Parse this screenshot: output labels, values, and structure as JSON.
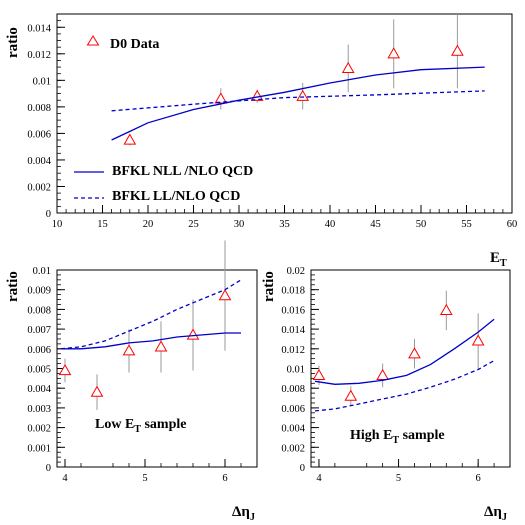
{
  "colors": {
    "nll": "#0000cc",
    "ll": "#0000cc",
    "data_marker": "#ff0000",
    "error_bar": "#999999",
    "axis": "#000000"
  },
  "chart_data": [
    {
      "type": "line",
      "ylabel": "ratio",
      "xlim": [
        10,
        60
      ],
      "ylim": [
        0,
        0.015
      ],
      "xticks": [
        "10",
        "15",
        "20",
        "25",
        "30",
        "35",
        "40",
        "45",
        "50",
        "55",
        "60"
      ],
      "yticks": [
        "0",
        "0.002",
        "0.004",
        "0.006",
        "0.008",
        "0.01",
        "0.012",
        "0.014"
      ],
      "legend": {
        "data_label": "D0 Data",
        "nll_label": "BFKL NLL /NLO QCD",
        "ll_label": "BFKL LL/NLO QCD"
      },
      "series": [
        {
          "name": "D0 Data",
          "style": "triangle",
          "x": [
            18,
            28,
            32,
            37,
            42,
            47,
            54
          ],
          "y": [
            0.0055,
            0.0086,
            0.0088,
            0.0088,
            0.0109,
            0.012,
            0.0122
          ],
          "err": [
            0.0004,
            0.0008,
            0.0005,
            0.001,
            0.0018,
            0.0026,
            0.0028
          ]
        },
        {
          "name": "BFKL NLL /NLO QCD",
          "style": "solid",
          "x": [
            16,
            20,
            25,
            30,
            35,
            40,
            45,
            50,
            57
          ],
          "y": [
            0.0055,
            0.0068,
            0.0078,
            0.0085,
            0.0091,
            0.0098,
            0.0104,
            0.0108,
            0.011
          ]
        },
        {
          "name": "BFKL LL/NLO QCD",
          "style": "dashed",
          "x": [
            16,
            25,
            35,
            45,
            57
          ],
          "y": [
            0.0077,
            0.0082,
            0.0087,
            0.0089,
            0.0092
          ]
        }
      ]
    },
    {
      "type": "line",
      "ylabel": "ratio",
      "xlabel": "Δη",
      "xlabel_sub": "J",
      "xlim": [
        3.9,
        6.4
      ],
      "ylim": [
        0,
        0.01
      ],
      "xticks": [
        "4",
        "5",
        "6"
      ],
      "yticks": [
        "0",
        "0.001",
        "0.002",
        "0.003",
        "0.004",
        "0.005",
        "0.006",
        "0.007",
        "0.008",
        "0.009",
        "0.01"
      ],
      "sample_label": {
        "pre": "Low E",
        "sub": "T",
        "post": " sample"
      },
      "series": [
        {
          "name": "D0 Data",
          "style": "triangle",
          "x": [
            4.0,
            4.4,
            4.8,
            5.2,
            5.6,
            6.0
          ],
          "y": [
            0.0049,
            0.0038,
            0.0059,
            0.0061,
            0.0067,
            0.0087
          ],
          "err": [
            0.0006,
            0.0009,
            0.0011,
            0.0013,
            0.0018,
            0.0028
          ]
        },
        {
          "name": "BFKL NLL /NLO QCD",
          "style": "solid",
          "x": [
            3.95,
            4.2,
            4.5,
            4.8,
            5.1,
            5.4,
            5.7,
            6.0,
            6.2
          ],
          "y": [
            0.006,
            0.006,
            0.0061,
            0.0063,
            0.0064,
            0.0066,
            0.0067,
            0.0068,
            0.0068
          ]
        },
        {
          "name": "BFKL LL/NLO QCD",
          "style": "dashed",
          "x": [
            3.95,
            4.2,
            4.5,
            4.8,
            5.1,
            5.4,
            5.7,
            6.0,
            6.2
          ],
          "y": [
            0.006,
            0.0061,
            0.0064,
            0.0069,
            0.0074,
            0.008,
            0.0085,
            0.009,
            0.0095
          ]
        }
      ]
    },
    {
      "type": "line",
      "ylabel": "ratio",
      "xlabel": "Δη",
      "xlabel_sub": "J",
      "top_label": "E",
      "top_label_sub": "T",
      "xlim": [
        3.9,
        6.4
      ],
      "ylim": [
        0,
        0.02
      ],
      "xticks": [
        "4",
        "5",
        "6"
      ],
      "yticks": [
        "0",
        "0.002",
        "0.004",
        "0.006",
        "0.008",
        "0.01",
        "0.012",
        "0.014",
        "0.016",
        "0.018",
        "0.02"
      ],
      "sample_label": {
        "pre": "High E",
        "sub": "T",
        "post": " sample"
      },
      "series": [
        {
          "name": "D0 Data",
          "style": "triangle",
          "x": [
            4.0,
            4.4,
            4.8,
            5.2,
            5.6,
            6.0
          ],
          "y": [
            0.0093,
            0.0072,
            0.0093,
            0.0115,
            0.0159,
            0.0128
          ],
          "err": [
            0.001,
            0.001,
            0.0012,
            0.0015,
            0.002,
            0.0028
          ]
        },
        {
          "name": "BFKL NLL /NLO QCD",
          "style": "solid",
          "x": [
            3.95,
            4.2,
            4.5,
            4.8,
            5.1,
            5.4,
            5.7,
            6.0,
            6.2
          ],
          "y": [
            0.0087,
            0.0084,
            0.0085,
            0.0088,
            0.0093,
            0.0104,
            0.012,
            0.0137,
            0.015
          ]
        },
        {
          "name": "BFKL LL/NLO QCD",
          "style": "dashed",
          "x": [
            3.95,
            4.2,
            4.5,
            4.8,
            5.1,
            5.4,
            5.7,
            6.0,
            6.2
          ],
          "y": [
            0.0057,
            0.0059,
            0.0064,
            0.0069,
            0.0074,
            0.0081,
            0.0089,
            0.0099,
            0.0108
          ]
        }
      ]
    }
  ]
}
